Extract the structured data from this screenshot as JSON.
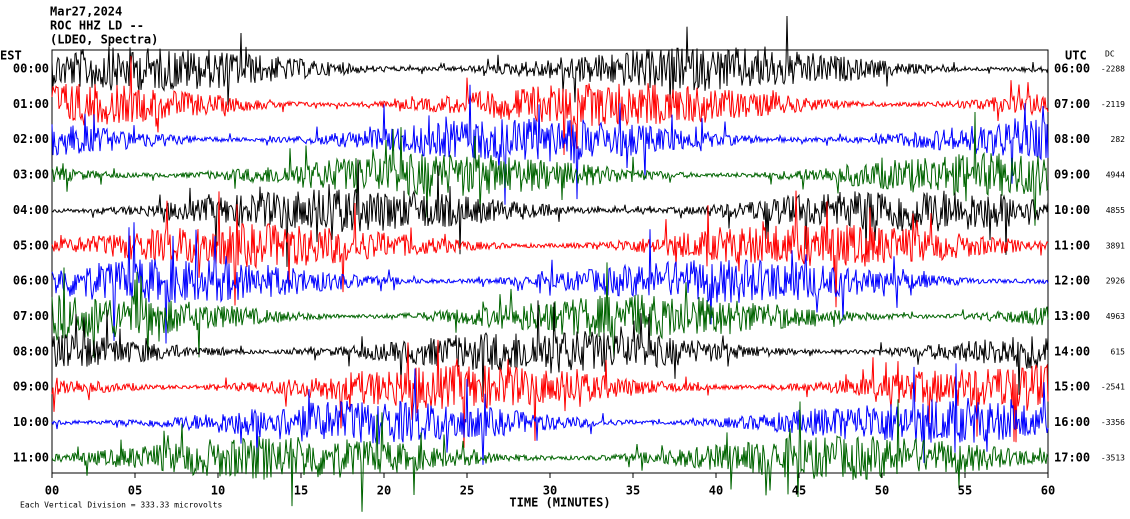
{
  "chart_data": {
    "type": "helicorder",
    "title_lines": [
      "Mar27,2024",
      "ROC HHZ LD --",
      "(LDEO, Spectra)"
    ],
    "left_label": "EST",
    "right_label": "UTC",
    "dc_label": "DC",
    "xlabel": "TIME (MINUTES)",
    "footer": "Each Vertical Division = 333.33 microvolts",
    "xlim": [
      0,
      60
    ],
    "xticks": [
      {
        "value": 0,
        "label": "00"
      },
      {
        "value": 5,
        "label": "05"
      },
      10,
      15,
      20,
      25,
      30,
      35,
      40,
      45,
      50,
      55,
      60
    ],
    "rows": [
      {
        "est": "00:00",
        "utc": "06:00",
        "dc": -2288,
        "color": "#000000"
      },
      {
        "est": "01:00",
        "utc": "07:00",
        "dc": -2119,
        "color": "#ff0000"
      },
      {
        "est": "02:00",
        "utc": "08:00",
        "dc": 282,
        "color": "#0000ff"
      },
      {
        "est": "03:00",
        "utc": "09:00",
        "dc": 4944,
        "color": "#006400"
      },
      {
        "est": "04:00",
        "utc": "10:00",
        "dc": 4855,
        "color": "#000000"
      },
      {
        "est": "05:00",
        "utc": "11:00",
        "dc": 3891,
        "color": "#ff0000"
      },
      {
        "est": "06:00",
        "utc": "12:00",
        "dc": 2926,
        "color": "#0000ff"
      },
      {
        "est": "07:00",
        "utc": "13:00",
        "dc": 4963,
        "color": "#006400"
      },
      {
        "est": "08:00",
        "utc": "14:00",
        "dc": 615,
        "color": "#000000"
      },
      {
        "est": "09:00",
        "utc": "15:00",
        "dc": -2541,
        "color": "#ff0000"
      },
      {
        "est": "10:00",
        "utc": "16:00",
        "dc": -3356,
        "color": "#0000ff"
      },
      {
        "est": "11:00",
        "utc": "17:00",
        "dc": -3513,
        "color": "#006400"
      }
    ]
  }
}
